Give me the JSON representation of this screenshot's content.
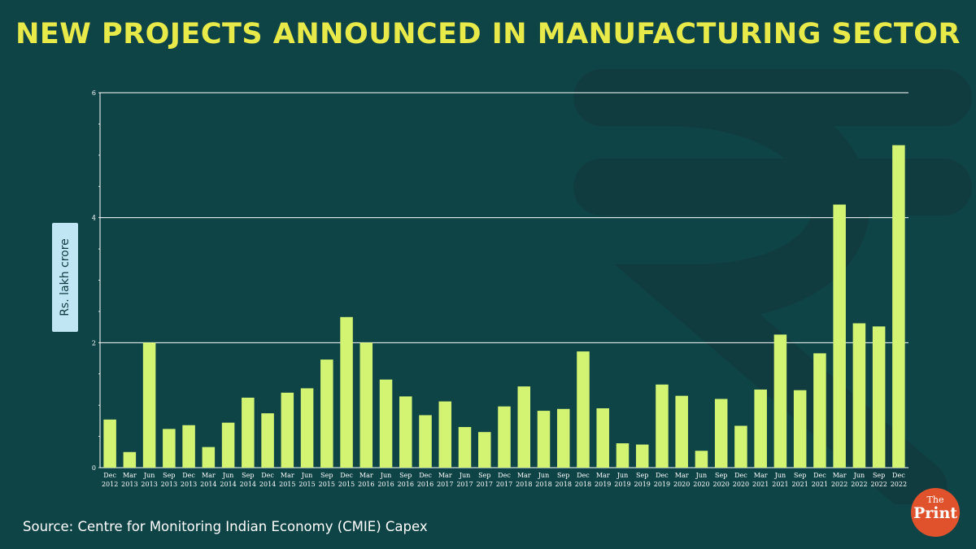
{
  "colors": {
    "background": "#0f4447",
    "title": "#e8ea4a",
    "bar": "#d2f472",
    "grid": "#ffffff",
    "ylabel_bg": "#bfe6f2",
    "logo_bg": "#e0522b"
  },
  "header": {
    "title": "NEW PROJECTS ANNOUNCED IN MANUFACTURING SECTOR"
  },
  "footer": {
    "source": "Source: Centre for Monitoring Indian Economy (CMIE) Capex"
  },
  "logo": {
    "the": "The",
    "print": "Print",
    "icon": "theprint-logo-icon"
  },
  "background_icon": "rupee-icon",
  "chart_data": {
    "type": "bar",
    "title": "NEW PROJECTS ANNOUNCED IN MANUFACTURING SECTOR",
    "xlabel": "",
    "ylabel": "Rs. lakh crore",
    "ylim": [
      0,
      6
    ],
    "yticks": [
      0,
      2,
      4,
      6
    ],
    "grid": true,
    "categories": [
      {
        "q": "Dec",
        "y": "2012"
      },
      {
        "q": "Mar",
        "y": "2013"
      },
      {
        "q": "Jun",
        "y": "2013"
      },
      {
        "q": "Sep",
        "y": "2013"
      },
      {
        "q": "Dec",
        "y": "2013"
      },
      {
        "q": "Mar",
        "y": "2014"
      },
      {
        "q": "Jun",
        "y": "2014"
      },
      {
        "q": "Sep",
        "y": "2014"
      },
      {
        "q": "Dec",
        "y": "2014"
      },
      {
        "q": "Mar",
        "y": "2015"
      },
      {
        "q": "Jun",
        "y": "2015"
      },
      {
        "q": "Sep",
        "y": "2015"
      },
      {
        "q": "Dec",
        "y": "2015"
      },
      {
        "q": "Mar",
        "y": "2016"
      },
      {
        "q": "Jun",
        "y": "2016"
      },
      {
        "q": "Sep",
        "y": "2016"
      },
      {
        "q": "Dec",
        "y": "2016"
      },
      {
        "q": "Mar",
        "y": "2017"
      },
      {
        "q": "Jun",
        "y": "2017"
      },
      {
        "q": "Sep",
        "y": "2017"
      },
      {
        "q": "Dec",
        "y": "2017"
      },
      {
        "q": "Mar",
        "y": "2018"
      },
      {
        "q": "Jun",
        "y": "2018"
      },
      {
        "q": "Sep",
        "y": "2018"
      },
      {
        "q": "Dec",
        "y": "2018"
      },
      {
        "q": "Mar",
        "y": "2019"
      },
      {
        "q": "Jun",
        "y": "2019"
      },
      {
        "q": "Sep",
        "y": "2019"
      },
      {
        "q": "Dec",
        "y": "2019"
      },
      {
        "q": "Mar",
        "y": "2020"
      },
      {
        "q": "Jun",
        "y": "2020"
      },
      {
        "q": "Sep",
        "y": "2020"
      },
      {
        "q": "Dec",
        "y": "2020"
      },
      {
        "q": "Mar",
        "y": "2021"
      },
      {
        "q": "Jun",
        "y": "2021"
      },
      {
        "q": "Sep",
        "y": "2021"
      },
      {
        "q": "Dec",
        "y": "2021"
      },
      {
        "q": "Mar",
        "y": "2022"
      },
      {
        "q": "Jun",
        "y": "2022"
      },
      {
        "q": "Sep",
        "y": "2022"
      },
      {
        "q": "Dec",
        "y": "2022"
      }
    ],
    "values": [
      0.77,
      0.25,
      2.0,
      0.62,
      0.68,
      0.33,
      0.72,
      1.12,
      0.87,
      1.2,
      1.27,
      1.73,
      2.41,
      2.0,
      1.41,
      1.14,
      0.84,
      1.06,
      0.65,
      0.57,
      0.98,
      1.3,
      0.91,
      0.94,
      1.86,
      0.95,
      0.39,
      0.37,
      1.33,
      1.15,
      0.27,
      1.1,
      0.67,
      1.25,
      2.13,
      1.24,
      1.83,
      4.21,
      2.31,
      2.26,
      5.16
    ]
  }
}
